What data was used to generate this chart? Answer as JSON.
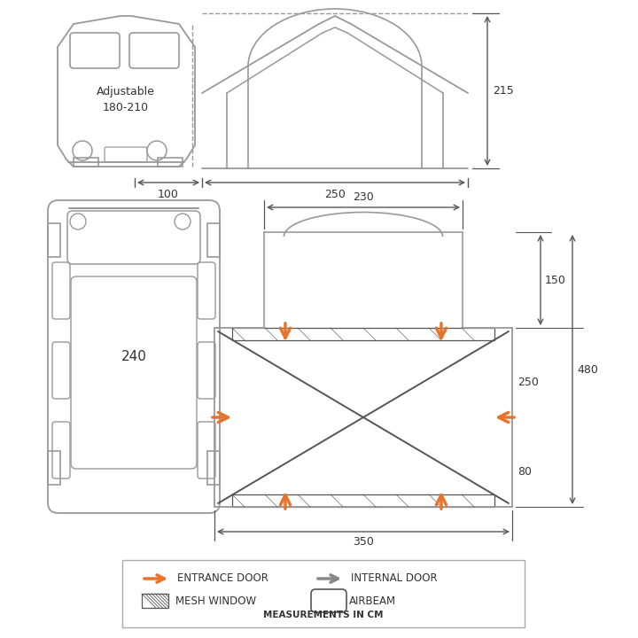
{
  "bg_color": "#ffffff",
  "line_color": "#999999",
  "dark_line": "#555555",
  "orange": "#E8732A",
  "gray_arrow": "#888888",
  "font_color": "#333333",
  "adjustable_text1": "Adjustable",
  "adjustable_text2": "180-210",
  "dim_215": "215",
  "dim_100": "100",
  "dim_250": "250",
  "dim_230": "230",
  "dim_150": "150",
  "dim_480": "480",
  "dim_250b": "250",
  "dim_80": "80",
  "dim_350": "350",
  "dim_240": "240",
  "measurements_note": "MEASUREMENTS IN CM"
}
